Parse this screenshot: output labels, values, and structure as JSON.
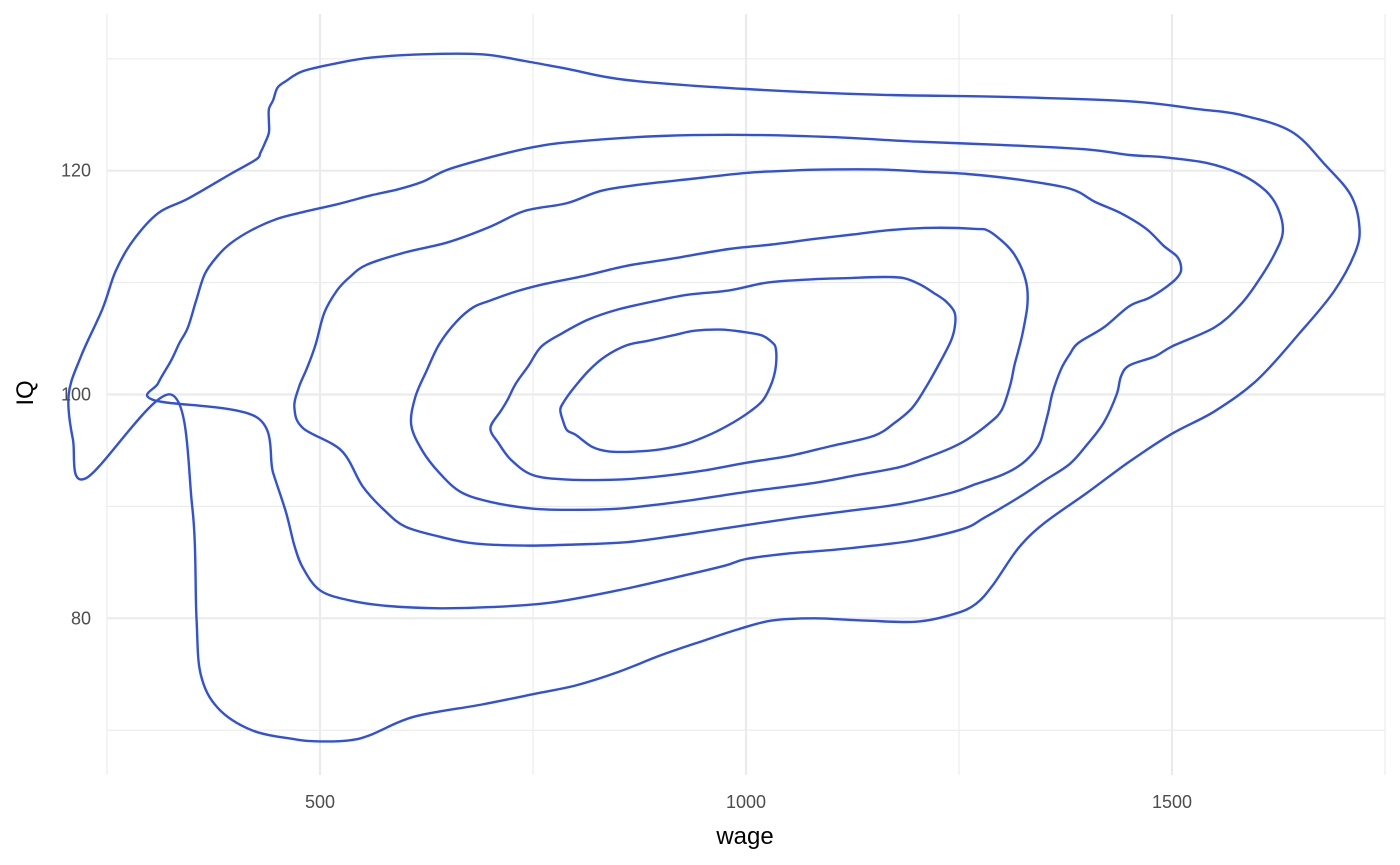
{
  "chart_data": {
    "type": "contour",
    "title": "",
    "xlabel": "wage",
    "ylabel": "IQ",
    "xlim": [
      250,
      1750
    ],
    "ylim": [
      66,
      134
    ],
    "x_ticks": [
      500,
      1000,
      1500
    ],
    "x_tick_labels": [
      "500",
      "1000",
      "1500"
    ],
    "x_minor_ticks": [
      250,
      750,
      1250,
      1750
    ],
    "y_ticks": [
      80,
      100,
      120
    ],
    "y_tick_labels": [
      "80",
      "100",
      "120"
    ],
    "y_minor_ticks": [
      70,
      90,
      110,
      130
    ],
    "grid": true,
    "legend": "none",
    "line_color": "#3050e0",
    "contours": [
      {
        "level": 1,
        "points": [
          [
            325,
            100
          ],
          [
            350,
            90
          ],
          [
            355,
            80
          ],
          [
            360,
            75
          ],
          [
            380,
            72
          ],
          [
            420,
            70
          ],
          [
            470,
            69.2
          ],
          [
            500,
            69
          ],
          [
            535,
            69.1
          ],
          [
            560,
            69.6
          ],
          [
            610,
            71.2
          ],
          [
            690,
            72.3
          ],
          [
            755,
            73.3
          ],
          [
            800,
            74
          ],
          [
            850,
            75.2
          ],
          [
            900,
            76.7
          ],
          [
            950,
            78
          ],
          [
            990,
            79
          ],
          [
            1030,
            79.8
          ],
          [
            1080,
            80
          ],
          [
            1140,
            79.8
          ],
          [
            1200,
            79.7
          ],
          [
            1245,
            80.4
          ],
          [
            1270,
            81.3
          ],
          [
            1290,
            83
          ],
          [
            1320,
            86.3
          ],
          [
            1350,
            88.5
          ],
          [
            1400,
            91.2
          ],
          [
            1450,
            94
          ],
          [
            1500,
            96.5
          ],
          [
            1550,
            98.5
          ],
          [
            1600,
            101.3
          ],
          [
            1650,
            105.5
          ],
          [
            1690,
            109.2
          ],
          [
            1715,
            112.7
          ],
          [
            1720,
            115
          ],
          [
            1710,
            117.8
          ],
          [
            1680,
            120.5
          ],
          [
            1640,
            123.5
          ],
          [
            1580,
            125
          ],
          [
            1530,
            125.5
          ],
          [
            1450,
            126.2
          ],
          [
            1300,
            126.6
          ],
          [
            1150,
            126.8
          ],
          [
            1000,
            127.3
          ],
          [
            860,
            128.1
          ],
          [
            790,
            129.1
          ],
          [
            740,
            129.8
          ],
          [
            690,
            130.4
          ],
          [
            620,
            130.4
          ],
          [
            560,
            130.1
          ],
          [
            520,
            129.6
          ],
          [
            480,
            128.9
          ],
          [
            460,
            128
          ],
          [
            450,
            127.4
          ],
          [
            445,
            126.3
          ],
          [
            440,
            125.5
          ],
          [
            440,
            124.4
          ],
          [
            440,
            123.4
          ],
          [
            435,
            122.4
          ],
          [
            430,
            121.6
          ],
          [
            425,
            121
          ],
          [
            395,
            119.7
          ],
          [
            345,
            117.5
          ],
          [
            310,
            116.2
          ],
          [
            280,
            113.7
          ],
          [
            260,
            111
          ],
          [
            245,
            107.7
          ],
          [
            220,
            103.5
          ],
          [
            205,
            100
          ],
          [
            210,
            96
          ],
          [
            225,
            92.5
          ]
        ]
      },
      {
        "level": 2,
        "points": [
          [
            425,
            98
          ],
          [
            445,
            93
          ],
          [
            460,
            89.5
          ],
          [
            470,
            86.5
          ],
          [
            480,
            84.5
          ],
          [
            500,
            82.5
          ],
          [
            535,
            81.6
          ],
          [
            580,
            81.1
          ],
          [
            640,
            80.9
          ],
          [
            700,
            81
          ],
          [
            770,
            81.4
          ],
          [
            850,
            82.5
          ],
          [
            920,
            83.7
          ],
          [
            975,
            84.7
          ],
          [
            1000,
            85.3
          ],
          [
            1050,
            85.8
          ],
          [
            1100,
            86.1
          ],
          [
            1150,
            86.5
          ],
          [
            1200,
            87
          ],
          [
            1255,
            88
          ],
          [
            1280,
            89
          ],
          [
            1320,
            90.8
          ],
          [
            1350,
            92.3
          ],
          [
            1380,
            93.8
          ],
          [
            1400,
            95.5
          ],
          [
            1420,
            97.5
          ],
          [
            1435,
            100
          ],
          [
            1440,
            101.6
          ],
          [
            1450,
            102.6
          ],
          [
            1480,
            103.4
          ],
          [
            1500,
            104.3
          ],
          [
            1550,
            106
          ],
          [
            1580,
            108
          ],
          [
            1600,
            110
          ],
          [
            1620,
            112.5
          ],
          [
            1630,
            114.5
          ],
          [
            1625,
            116.5
          ],
          [
            1610,
            118.2
          ],
          [
            1580,
            119.7
          ],
          [
            1540,
            120.7
          ],
          [
            1490,
            121.2
          ],
          [
            1450,
            121.4
          ],
          [
            1400,
            121.9
          ],
          [
            1300,
            122.3
          ],
          [
            1200,
            122.6
          ],
          [
            1100,
            123
          ],
          [
            1000,
            123.2
          ],
          [
            900,
            123.1
          ],
          [
            800,
            122.6
          ],
          [
            750,
            122.1
          ],
          [
            700,
            121.2
          ],
          [
            650,
            120.1
          ],
          [
            620,
            119
          ],
          [
            590,
            118.3
          ],
          [
            560,
            117.8
          ],
          [
            520,
            117
          ],
          [
            480,
            116.3
          ],
          [
            450,
            115.7
          ],
          [
            420,
            114.7
          ],
          [
            395,
            113.5
          ],
          [
            380,
            112.4
          ],
          [
            365,
            110.8
          ],
          [
            355,
            108.5
          ],
          [
            345,
            106
          ],
          [
            335,
            104.6
          ],
          [
            325,
            103
          ],
          [
            310,
            101
          ],
          [
            305,
            99.5
          ]
        ]
      },
      {
        "level": 3,
        "points": [
          [
            525,
            95
          ],
          [
            550,
            91.8
          ],
          [
            575,
            89.7
          ],
          [
            600,
            88.2
          ],
          [
            640,
            87.3
          ],
          [
            680,
            86.7
          ],
          [
            740,
            86.5
          ],
          [
            800,
            86.6
          ],
          [
            860,
            86.8
          ],
          [
            920,
            87.4
          ],
          [
            980,
            88.1
          ],
          [
            1060,
            89
          ],
          [
            1120,
            89.6
          ],
          [
            1180,
            90.2
          ],
          [
            1240,
            91.2
          ],
          [
            1270,
            92
          ],
          [
            1300,
            92.8
          ],
          [
            1320,
            93.6
          ],
          [
            1335,
            94.6
          ],
          [
            1345,
            95.7
          ],
          [
            1350,
            97
          ],
          [
            1355,
            98.5
          ],
          [
            1360,
            100.2
          ],
          [
            1370,
            102.3
          ],
          [
            1380,
            103.6
          ],
          [
            1390,
            104.6
          ],
          [
            1420,
            106
          ],
          [
            1450,
            107.9
          ],
          [
            1475,
            108.7
          ],
          [
            1500,
            110
          ],
          [
            1510,
            110.9
          ],
          [
            1510,
            111.7
          ],
          [
            1505,
            112.4
          ],
          [
            1490,
            113.3
          ],
          [
            1470,
            114.8
          ],
          [
            1440,
            116.2
          ],
          [
            1410,
            117.2
          ],
          [
            1380,
            118.4
          ],
          [
            1320,
            119.2
          ],
          [
            1260,
            119.7
          ],
          [
            1210,
            119.9
          ],
          [
            1160,
            120.1
          ],
          [
            1090,
            120.1
          ],
          [
            1050,
            120
          ],
          [
            1000,
            119.8
          ],
          [
            940,
            119.3
          ],
          [
            880,
            118.8
          ],
          [
            830,
            118.2
          ],
          [
            790,
            117.1
          ],
          [
            740,
            116.4
          ],
          [
            700,
            115
          ],
          [
            650,
            113.6
          ],
          [
            600,
            112.7
          ],
          [
            555,
            111.6
          ],
          [
            535,
            110.5
          ],
          [
            520,
            109.3
          ],
          [
            505,
            107.3
          ],
          [
            495,
            104.5
          ],
          [
            485,
            102.4
          ],
          [
            475,
            100.6
          ],
          [
            470,
            98.8
          ],
          [
            480,
            97
          ]
        ]
      },
      {
        "level": 4,
        "points": [
          [
            620,
            95
          ],
          [
            640,
            93
          ],
          [
            665,
            91.3
          ],
          [
            700,
            90.4
          ],
          [
            750,
            89.8
          ],
          [
            800,
            89.7
          ],
          [
            850,
            89.8
          ],
          [
            900,
            90.2
          ],
          [
            940,
            90.6
          ],
          [
            1000,
            91.3
          ],
          [
            1080,
            92.1
          ],
          [
            1130,
            92.8
          ],
          [
            1180,
            93.5
          ],
          [
            1210,
            94.3
          ],
          [
            1240,
            95.2
          ],
          [
            1260,
            96
          ],
          [
            1285,
            97.4
          ],
          [
            1300,
            98.6
          ],
          [
            1310,
            100.8
          ],
          [
            1315,
            102.6
          ],
          [
            1320,
            104
          ],
          [
            1325,
            105.6
          ],
          [
            1330,
            107.8
          ],
          [
            1330,
            109.5
          ],
          [
            1325,
            111
          ],
          [
            1315,
            112.5
          ],
          [
            1305,
            113.4
          ],
          [
            1285,
            114.6
          ],
          [
            1270,
            114.8
          ],
          [
            1220,
            114.9
          ],
          [
            1170,
            114.7
          ],
          [
            1125,
            114.3
          ],
          [
            1080,
            113.9
          ],
          [
            1030,
            113.4
          ],
          [
            980,
            113
          ],
          [
            910,
            112.1
          ],
          [
            860,
            111.5
          ],
          [
            810,
            110.6
          ],
          [
            765,
            109.9
          ],
          [
            730,
            109.2
          ],
          [
            700,
            108.4
          ],
          [
            680,
            107.8
          ],
          [
            660,
            106.5
          ],
          [
            640,
            104.5
          ],
          [
            625,
            102.1
          ],
          [
            612,
            99.8
          ],
          [
            607,
            97.3
          ]
        ]
      },
      {
        "level": 5,
        "points": [
          [
            700,
            97
          ],
          [
            710,
            95.6
          ],
          [
            725,
            94.1
          ],
          [
            750,
            92.8
          ],
          [
            790,
            92.4
          ],
          [
            850,
            92.4
          ],
          [
            900,
            92.7
          ],
          [
            950,
            93.2
          ],
          [
            1000,
            93.9
          ],
          [
            1050,
            94.5
          ],
          [
            1100,
            95.4
          ],
          [
            1150,
            96.3
          ],
          [
            1175,
            97.5
          ],
          [
            1195,
            98.8
          ],
          [
            1210,
            100.5
          ],
          [
            1225,
            102.5
          ],
          [
            1240,
            104.7
          ],
          [
            1245,
            106
          ],
          [
            1245,
            107.3
          ],
          [
            1235,
            108.3
          ],
          [
            1220,
            109.1
          ],
          [
            1205,
            109.8
          ],
          [
            1185,
            110.4
          ],
          [
            1160,
            110.5
          ],
          [
            1120,
            110.4
          ],
          [
            1080,
            110.3
          ],
          [
            1025,
            110
          ],
          [
            980,
            109.3
          ],
          [
            930,
            108.9
          ],
          [
            890,
            108.3
          ],
          [
            850,
            107.6
          ],
          [
            815,
            106.7
          ],
          [
            785,
            105.5
          ],
          [
            760,
            104.3
          ],
          [
            745,
            102.6
          ],
          [
            730,
            101
          ],
          [
            720,
            99.5
          ],
          [
            712,
            98.5
          ]
        ]
      },
      {
        "level": 6,
        "points": [
          [
            800,
            96.4
          ],
          [
            820,
            95.3
          ],
          [
            840,
            94.9
          ],
          [
            870,
            94.9
          ],
          [
            900,
            95.1
          ],
          [
            930,
            95.6
          ],
          [
            960,
            96.5
          ],
          [
            985,
            97.5
          ],
          [
            1005,
            98.5
          ],
          [
            1020,
            99.5
          ],
          [
            1030,
            101
          ],
          [
            1035,
            102.5
          ],
          [
            1035,
            104.1
          ],
          [
            1030,
            104.7
          ],
          [
            1018,
            105.3
          ],
          [
            996,
            105.6
          ],
          [
            970,
            105.8
          ],
          [
            940,
            105.7
          ],
          [
            915,
            105.3
          ],
          [
            885,
            104.8
          ],
          [
            860,
            104.4
          ],
          [
            835,
            103.4
          ],
          [
            815,
            102.1
          ],
          [
            795,
            100.3
          ],
          [
            785,
            99.2
          ],
          [
            782,
            98.6
          ],
          [
            785,
            97.7
          ],
          [
            790,
            96.8
          ]
        ]
      }
    ]
  }
}
